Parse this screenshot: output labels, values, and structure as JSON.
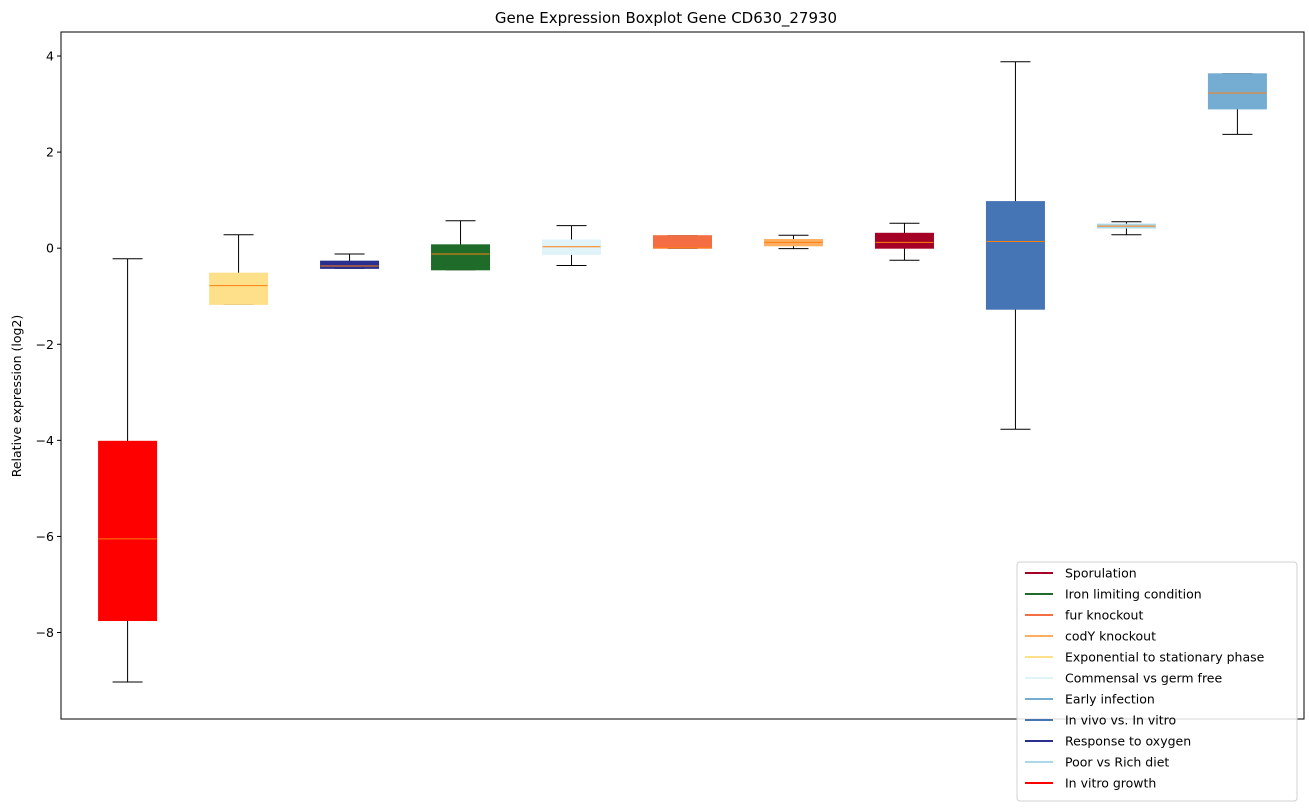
{
  "chart_data": {
    "type": "boxplot",
    "title": "Gene Expression Boxplot Gene CD630_27930",
    "xlabel": "",
    "ylabel": "Relative expression (log2)",
    "ylim": [
      -9.8,
      4.5
    ],
    "yticks": [
      -8,
      -6,
      -4,
      -2,
      0,
      2,
      4
    ],
    "x_ticks_visible": false,
    "grid": false,
    "legend_position": "lower-right",
    "boxes": [
      {
        "color": "#ff0000",
        "whisker_low": -9.03,
        "q1": -7.75,
        "median": -6.05,
        "q3": -4.02,
        "whisker_high": -0.22
      },
      {
        "color": "#fee08b",
        "whisker_low": -1.17,
        "q1": -1.17,
        "median": -0.78,
        "q3": -0.52,
        "whisker_high": 0.28
      },
      {
        "color": "#2a2f8f",
        "whisker_low": -0.42,
        "q1": -0.42,
        "median": -0.37,
        "q3": -0.27,
        "whisker_high": -0.12
      },
      {
        "color": "#1f6b2a",
        "whisker_low": -0.45,
        "q1": -0.45,
        "median": -0.12,
        "q3": 0.07,
        "whisker_high": 0.57
      },
      {
        "color": "#e0f3f8",
        "whisker_low": -0.36,
        "q1": -0.13,
        "median": 0.03,
        "q3": 0.17,
        "whisker_high": 0.47
      },
      {
        "color": "#f46d43",
        "whisker_low": 0.0,
        "q1": 0.0,
        "median": 0.01,
        "q3": 0.26,
        "whisker_high": 0.26
      },
      {
        "color": "#fdae61",
        "whisker_low": -0.01,
        "q1": 0.05,
        "median": 0.12,
        "q3": 0.18,
        "whisker_high": 0.27
      },
      {
        "color": "#a50026",
        "whisker_low": -0.25,
        "q1": 0.0,
        "median": 0.12,
        "q3": 0.31,
        "whisker_high": 0.52
      },
      {
        "color": "#4575b4",
        "whisker_low": -3.77,
        "q1": -1.27,
        "median": 0.14,
        "q3": 0.97,
        "whisker_high": 3.88
      },
      {
        "color": "#abd9e9",
        "whisker_low": 0.28,
        "q1": 0.42,
        "median": 0.46,
        "q3": 0.5,
        "whisker_high": 0.55
      },
      {
        "color": "#74add1",
        "whisker_low": 2.37,
        "q1": 2.9,
        "median": 3.23,
        "q3": 3.63,
        "whisker_high": 3.63
      }
    ],
    "median_color": "#ff7f0e",
    "legend": [
      {
        "name": "Sporulation",
        "color": "#a50026"
      },
      {
        "name": "Iron limiting condition",
        "color": "#1f6b2a"
      },
      {
        "name": "fur knockout",
        "color": "#f46d43"
      },
      {
        "name": "codY knockout",
        "color": "#fdae61"
      },
      {
        "name": "Exponential to stationary phase",
        "color": "#fee08b"
      },
      {
        "name": "Commensal vs germ free",
        "color": "#e0f3f8"
      },
      {
        "name": "Early infection",
        "color": "#74add1"
      },
      {
        "name": "In vivo vs. In vitro",
        "color": "#4575b4"
      },
      {
        "name": "Response to oxygen",
        "color": "#2a2f8f"
      },
      {
        "name": "Poor vs Rich diet",
        "color": "#abd9e9"
      },
      {
        "name": "In vitro growth",
        "color": "#ff0000"
      }
    ]
  }
}
